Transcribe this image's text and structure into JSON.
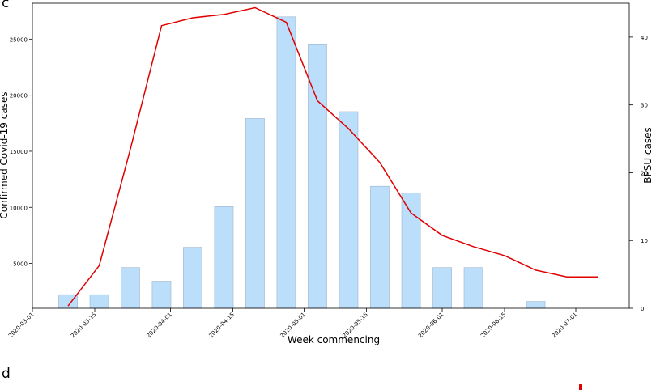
{
  "panel_labels": {
    "top": "c",
    "bottom": "d"
  },
  "chart_data": {
    "type": "bar",
    "xlabel": "Week commencing",
    "ylabel_left": "Confirmed Covid-19 cases",
    "ylabel_right": "BPSU cases",
    "x_ticks": [
      "2020-03-01",
      "2020-03-15",
      "2020-04-01",
      "2020-04-15",
      "2020-05-01",
      "2020-05-15",
      "2020-06-01",
      "2020-06-15",
      "2020-07-01"
    ],
    "y_left_ticks": [
      5000,
      10000,
      15000,
      20000,
      25000
    ],
    "y_right_ticks": [
      0,
      10,
      20,
      30,
      40
    ],
    "bar_color": "#bbdefb",
    "line_color": "#e00000",
    "bars": {
      "name": "BPSU cases",
      "axis": "right",
      "x": [
        "2020-03-09",
        "2020-03-16",
        "2020-03-23",
        "2020-03-30",
        "2020-04-06",
        "2020-04-13",
        "2020-04-20",
        "2020-04-27",
        "2020-05-04",
        "2020-05-11",
        "2020-05-18",
        "2020-05-25",
        "2020-06-01",
        "2020-06-08",
        "2020-06-15",
        "2020-06-22",
        "2020-06-29"
      ],
      "values": [
        2,
        2,
        6,
        4,
        9,
        15,
        28,
        43,
        39,
        29,
        18,
        17,
        6,
        6,
        0,
        1,
        0
      ]
    },
    "line": {
      "name": "Confirmed Covid-19 cases",
      "axis": "left",
      "x": [
        "2020-03-09",
        "2020-03-16",
        "2020-03-23",
        "2020-03-30",
        "2020-04-06",
        "2020-04-13",
        "2020-04-20",
        "2020-04-27",
        "2020-05-04",
        "2020-05-11",
        "2020-05-18",
        "2020-05-25",
        "2020-06-01",
        "2020-06-08",
        "2020-06-15",
        "2020-06-22",
        "2020-06-29",
        "2020-07-06"
      ],
      "values": [
        1200,
        4800,
        15200,
        26200,
        26900,
        27200,
        27800,
        26500,
        19500,
        17000,
        14000,
        9500,
        7500,
        6500,
        5700,
        4400,
        3800,
        3800
      ]
    },
    "ylim_left": [
      1000,
      28200
    ],
    "ylim_right": [
      0,
      45
    ],
    "xlim": [
      "2020-03-01",
      "2020-07-13"
    ],
    "grid": false,
    "legend": false
  }
}
